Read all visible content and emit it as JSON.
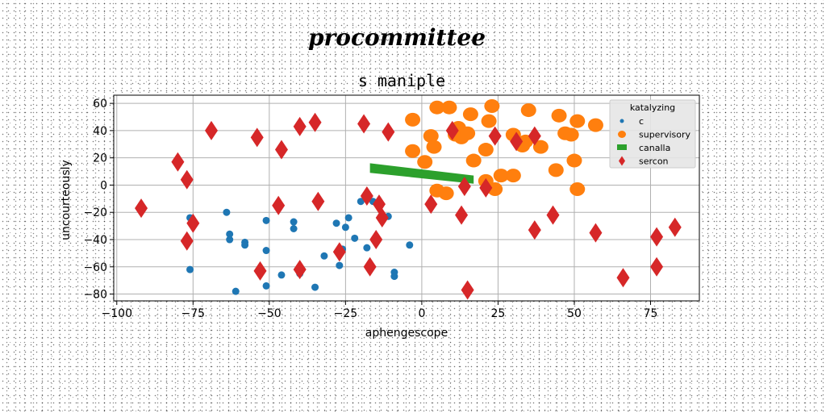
{
  "chart_data": {
    "type": "scatter",
    "supertitle": "procommittee",
    "title": "s maniple",
    "xlabel": "aphengescope",
    "ylabel": "uncourteously",
    "xlim": [
      -101,
      91
    ],
    "ylim": [
      -85,
      66
    ],
    "xticks": [
      -100,
      -75,
      -50,
      -25,
      0,
      25,
      50,
      75
    ],
    "yticks": [
      -80,
      -60,
      -40,
      -20,
      0,
      20,
      40,
      60
    ],
    "grid": true,
    "legend": {
      "title": "katalyzing",
      "placement": "top-right"
    },
    "series": [
      {
        "name": "c",
        "marker": "circle-small",
        "color": "#1f77b4",
        "points": [
          [
            -76,
            -24
          ],
          [
            -76,
            -62
          ],
          [
            -64,
            -20
          ],
          [
            -63,
            -36
          ],
          [
            -63,
            -40
          ],
          [
            -61,
            -78
          ],
          [
            -58,
            -42
          ],
          [
            -58,
            -44
          ],
          [
            -51,
            -26
          ],
          [
            -51,
            -48
          ],
          [
            -51,
            -74
          ],
          [
            -46,
            -66
          ],
          [
            -42,
            -27
          ],
          [
            -42,
            -32
          ],
          [
            -40,
            -65
          ],
          [
            -35,
            -75
          ],
          [
            -32,
            -52
          ],
          [
            -28,
            -28
          ],
          [
            -27,
            -59
          ],
          [
            -26,
            -47
          ],
          [
            -25,
            -31
          ],
          [
            -24,
            -24
          ],
          [
            -22,
            -39
          ],
          [
            -20,
            -12
          ],
          [
            -18,
            -46
          ],
          [
            -16,
            -12
          ],
          [
            -11,
            -23
          ],
          [
            -9,
            -64
          ],
          [
            -9,
            -67
          ],
          [
            -4,
            -44
          ]
        ]
      },
      {
        "name": "supervisory",
        "marker": "circle-large",
        "color": "#ff7f0e",
        "points": [
          [
            -3,
            48
          ],
          [
            -3,
            25
          ],
          [
            1,
            17
          ],
          [
            3,
            36
          ],
          [
            4,
            28
          ],
          [
            5,
            -4
          ],
          [
            5,
            57
          ],
          [
            8,
            -6
          ],
          [
            9,
            57
          ],
          [
            11,
            37
          ],
          [
            12,
            42
          ],
          [
            13,
            35
          ],
          [
            15,
            38
          ],
          [
            16,
            52
          ],
          [
            17,
            18
          ],
          [
            21,
            26
          ],
          [
            21,
            3
          ],
          [
            22,
            47
          ],
          [
            23,
            58
          ],
          [
            24,
            -3
          ],
          [
            26,
            7
          ],
          [
            30,
            7
          ],
          [
            30,
            37
          ],
          [
            33,
            29
          ],
          [
            34,
            32
          ],
          [
            35,
            55
          ],
          [
            39,
            28
          ],
          [
            44,
            11
          ],
          [
            45,
            51
          ],
          [
            47,
            38
          ],
          [
            49,
            37
          ],
          [
            50,
            18
          ],
          [
            51,
            47
          ],
          [
            51,
            -3
          ],
          [
            57,
            44
          ]
        ]
      },
      {
        "name": "canalla",
        "marker": "square",
        "color": "#2ca02c",
        "polygon": [
          [
            -17,
            16
          ],
          [
            17,
            7
          ],
          [
            17,
            1
          ],
          [
            -17,
            9
          ]
        ]
      },
      {
        "name": "sercon",
        "marker": "diamond",
        "color": "#d62728",
        "points": [
          [
            -92,
            -17
          ],
          [
            -80,
            17
          ],
          [
            -77,
            4
          ],
          [
            -77,
            -41
          ],
          [
            -75,
            -28
          ],
          [
            -69,
            40
          ],
          [
            -54,
            35
          ],
          [
            -53,
            -63
          ],
          [
            -47,
            -15
          ],
          [
            -46,
            26
          ],
          [
            -40,
            -62
          ],
          [
            -40,
            43
          ],
          [
            -35,
            46
          ],
          [
            -34,
            -12
          ],
          [
            -27,
            -49
          ],
          [
            -19,
            45
          ],
          [
            -18,
            -8
          ],
          [
            -17,
            -60
          ],
          [
            -15,
            -40
          ],
          [
            -14,
            -14
          ],
          [
            -13,
            -24
          ],
          [
            -11,
            39
          ],
          [
            3,
            -14
          ],
          [
            10,
            40
          ],
          [
            13,
            -22
          ],
          [
            14,
            -1
          ],
          [
            15,
            -77
          ],
          [
            21,
            -2
          ],
          [
            24,
            36
          ],
          [
            31,
            32
          ],
          [
            37,
            -33
          ],
          [
            37,
            36
          ],
          [
            43,
            -22
          ],
          [
            57,
            -35
          ],
          [
            66,
            -68
          ],
          [
            77,
            -38
          ],
          [
            77,
            -60
          ],
          [
            83,
            -31
          ]
        ]
      }
    ]
  }
}
